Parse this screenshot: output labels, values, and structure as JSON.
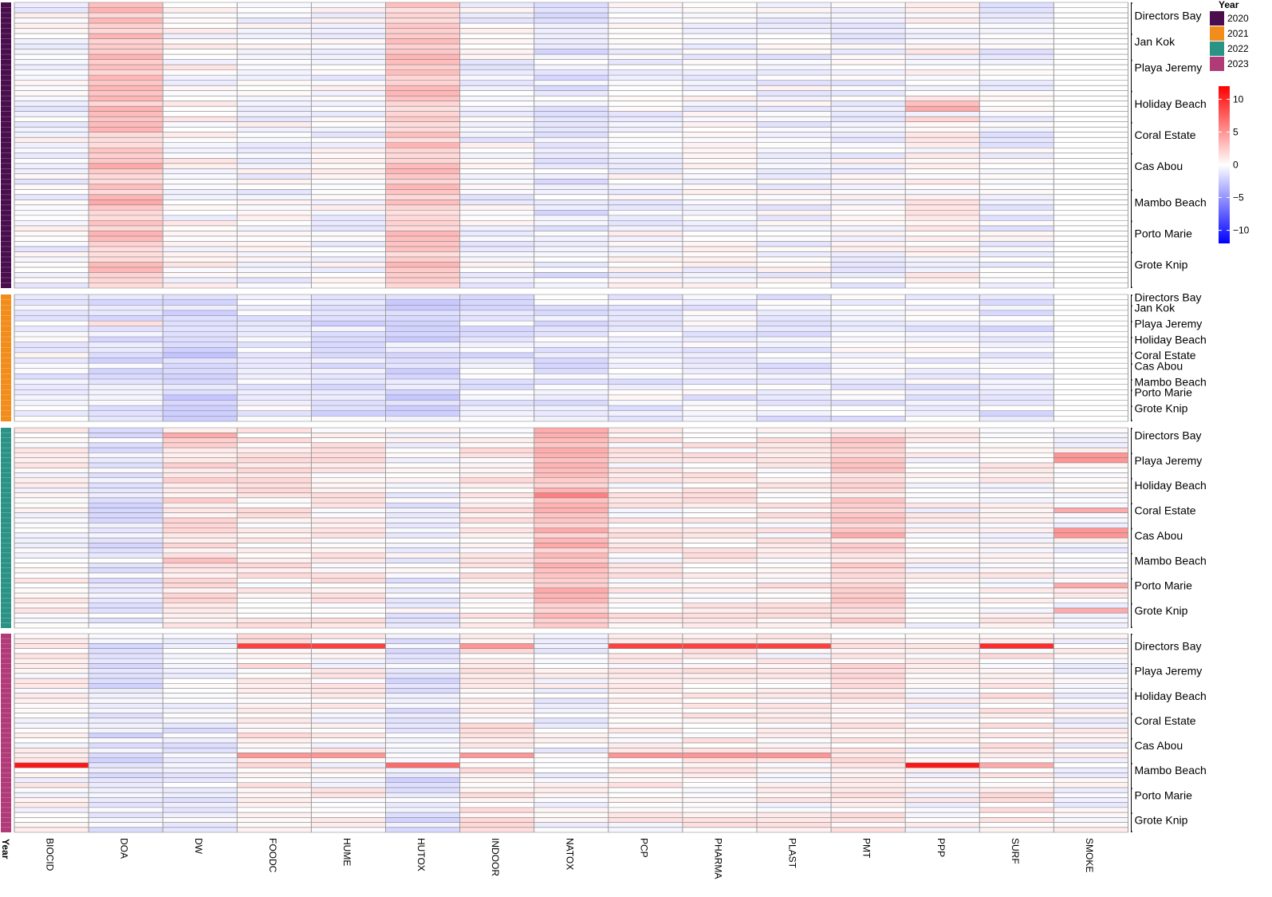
{
  "chart_data": {
    "type": "heatmap",
    "columns": [
      "BIOCID",
      "DOA",
      "DW",
      "FOODC",
      "HUME",
      "HUTOX",
      "INDOOR",
      "NATOX",
      "PCP",
      "PHARMA",
      "PLAST",
      "PMT",
      "PPP",
      "SURF",
      "SMOKE"
    ],
    "year_axis_label": "Year",
    "legend": {
      "year_title": "Year",
      "years": [
        {
          "label": "2020",
          "color": "#4a0e4e"
        },
        {
          "label": "2021",
          "color": "#f28c1a"
        },
        {
          "label": "2022",
          "color": "#2a9386"
        },
        {
          "label": "2023",
          "color": "#b13a78"
        }
      ],
      "color_scale": {
        "ticks": [
          "10",
          "5",
          "0",
          "−5",
          "−10"
        ],
        "tick_values": [
          10,
          5,
          0,
          -5,
          -10
        ],
        "range": [
          -12,
          12
        ],
        "low_color": "#0000ff",
        "mid_color": "#ffffff",
        "high_color": "#ff0000"
      }
    },
    "panels": [
      {
        "year": "2020",
        "rows": 55,
        "sites": [
          {
            "name": "Directors Bay",
            "row": 2
          },
          {
            "name": "Jan Kok",
            "row": 7
          },
          {
            "name": "Playa Jeremy",
            "row": 12
          },
          {
            "name": "Holiday Beach",
            "row": 19
          },
          {
            "name": "Coral Estate",
            "row": 25
          },
          {
            "name": "Cas Abou",
            "row": 31
          },
          {
            "name": "Mambo Beach",
            "row": 38
          },
          {
            "name": "Porto Marie",
            "row": 44
          },
          {
            "name": "Grote Knip",
            "row": 50
          }
        ],
        "base": [
          -0.3,
          2.5,
          0.2,
          -0.2,
          -0.2,
          2.5,
          -0.3,
          -1.0,
          -0.2,
          -0.2,
          -0.4,
          -0.3,
          0.3,
          -0.5,
          0
        ],
        "hotspots": [
          {
            "row": 19,
            "col": 12,
            "value": 3
          },
          {
            "row": 20,
            "col": 12,
            "value": 4
          },
          {
            "row": 22,
            "col": 12,
            "value": 2
          },
          {
            "row": 31,
            "col": 1,
            "value": 4
          },
          {
            "row": 38,
            "col": 1,
            "value": 4
          },
          {
            "row": 38,
            "col": 5,
            "value": 3
          },
          {
            "row": 45,
            "col": 5,
            "value": 3
          }
        ]
      },
      {
        "year": "2021",
        "rows": 24,
        "sites": [
          {
            "name": "Directors Bay",
            "row": 0
          },
          {
            "name": "Jan Kok",
            "row": 2
          },
          {
            "name": "Playa Jeremy",
            "row": 5
          },
          {
            "name": "Holiday Beach",
            "row": 8
          },
          {
            "name": "Coral Estate",
            "row": 11
          },
          {
            "name": "Cas Abou",
            "row": 13
          },
          {
            "name": "Mambo Beach",
            "row": 16
          },
          {
            "name": "Porto Marie",
            "row": 18
          },
          {
            "name": "Grote Knip",
            "row": 21
          }
        ],
        "base": [
          -0.5,
          -1.3,
          -1.8,
          -0.8,
          -1.2,
          -1.6,
          -1.0,
          -1.0,
          -0.6,
          -0.6,
          -0.8,
          -0.6,
          -0.6,
          -1.0,
          0
        ],
        "hotspots": [
          {
            "row": 5,
            "col": 1,
            "value": 1.5
          },
          {
            "row": 2,
            "col": 5,
            "value": -2.5
          }
        ]
      },
      {
        "year": "2022",
        "rows": 40,
        "sites": [
          {
            "name": "Directors Bay",
            "row": 1
          },
          {
            "name": "Playa Jeremy",
            "row": 6
          },
          {
            "name": "Holiday Beach",
            "row": 11
          },
          {
            "name": "Coral Estate",
            "row": 16
          },
          {
            "name": "Cas Abou",
            "row": 21
          },
          {
            "name": "Mambo Beach",
            "row": 26
          },
          {
            "name": "Porto Marie",
            "row": 31
          },
          {
            "name": "Grote Knip",
            "row": 36
          }
        ],
        "base": [
          0.3,
          -1.0,
          1.5,
          0.8,
          0.8,
          -0.5,
          0.8,
          3.0,
          0.6,
          0.6,
          0.7,
          1.8,
          0.2,
          0.3,
          0
        ],
        "hotspots": [
          {
            "row": 1,
            "col": 2,
            "value": 4
          },
          {
            "row": 5,
            "col": 14,
            "value": 5
          },
          {
            "row": 6,
            "col": 14,
            "value": 5
          },
          {
            "row": 13,
            "col": 7,
            "value": 6
          },
          {
            "row": 16,
            "col": 14,
            "value": 4
          },
          {
            "row": 20,
            "col": 14,
            "value": 5
          },
          {
            "row": 21,
            "col": 14,
            "value": 5
          },
          {
            "row": 21,
            "col": 11,
            "value": 4
          },
          {
            "row": 26,
            "col": 2,
            "value": 3
          },
          {
            "row": 31,
            "col": 14,
            "value": 4
          },
          {
            "row": 36,
            "col": 14,
            "value": 4
          }
        ]
      },
      {
        "year": "2023",
        "rows": 40,
        "sites": [
          {
            "name": "Directors Bay",
            "row": 2
          },
          {
            "name": "Playa Jeremy",
            "row": 7
          },
          {
            "name": "Holiday Beach",
            "row": 12
          },
          {
            "name": "Coral Estate",
            "row": 17
          },
          {
            "name": "Cas Abou",
            "row": 22
          },
          {
            "name": "Mambo Beach",
            "row": 27
          },
          {
            "name": "Porto Marie",
            "row": 32
          },
          {
            "name": "Grote Knip",
            "row": 37
          }
        ],
        "base": [
          0.2,
          -1.2,
          -0.8,
          0.8,
          0.4,
          -1.2,
          0.8,
          -0.2,
          0.6,
          0.6,
          0.4,
          1.0,
          0.1,
          0.8,
          0
        ],
        "hotspots": [
          {
            "row": 2,
            "col": 3,
            "value": 9
          },
          {
            "row": 2,
            "col": 4,
            "value": 9
          },
          {
            "row": 2,
            "col": 6,
            "value": 5
          },
          {
            "row": 2,
            "col": 8,
            "value": 9
          },
          {
            "row": 2,
            "col": 9,
            "value": 9
          },
          {
            "row": 2,
            "col": 10,
            "value": 9
          },
          {
            "row": 2,
            "col": 13,
            "value": 10
          },
          {
            "row": 24,
            "col": 3,
            "value": 5
          },
          {
            "row": 24,
            "col": 4,
            "value": 5
          },
          {
            "row": 24,
            "col": 6,
            "value": 5
          },
          {
            "row": 24,
            "col": 8,
            "value": 5
          },
          {
            "row": 24,
            "col": 9,
            "value": 5
          },
          {
            "row": 24,
            "col": 10,
            "value": 5
          },
          {
            "row": 26,
            "col": 0,
            "value": 11
          },
          {
            "row": 26,
            "col": 5,
            "value": 7
          },
          {
            "row": 26,
            "col": 12,
            "value": 11
          },
          {
            "row": 26,
            "col": 13,
            "value": 4
          }
        ]
      }
    ]
  }
}
